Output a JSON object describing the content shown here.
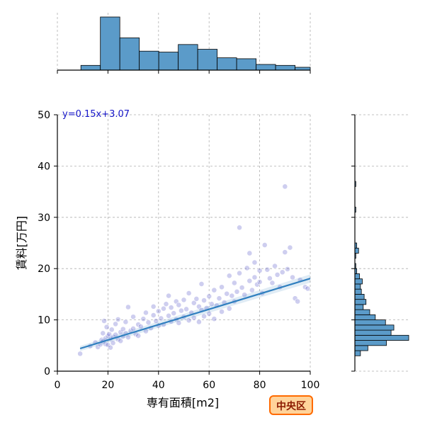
{
  "chart_data": {
    "type": "scatter",
    "title": "",
    "xlabel": "専有面積[m2]",
    "ylabel": "賃料[万円]",
    "xlim": [
      0,
      100
    ],
    "ylim": [
      0,
      50
    ],
    "xticks": [
      0,
      20,
      40,
      60,
      80,
      100
    ],
    "yticks": [
      0,
      10,
      20,
      30,
      40,
      50
    ],
    "grid": true,
    "colors": {
      "points": "#4f4fc4",
      "regression": "#2f7fbf",
      "hist_fill": "#5b9bc9",
      "hist_edge": "#000000",
      "badge_fill": "#ffd39a",
      "badge_border": "#ff6a00",
      "badge_text": "#8b1a00",
      "equation": "#1414c8"
    },
    "regression": {
      "equation": "y=0.15x+3.07",
      "slope": 0.15,
      "intercept": 3.07,
      "x_range": [
        9,
        100
      ]
    },
    "annotation": "中央区",
    "points": [
      [
        9,
        3.4
      ],
      [
        13,
        4.9
      ],
      [
        15,
        5.6
      ],
      [
        16,
        4.7
      ],
      [
        17,
        5.2
      ],
      [
        17.5,
        6.1
      ],
      [
        18,
        5.8
      ],
      [
        18,
        7.4
      ],
      [
        18.5,
        9.8
      ],
      [
        19,
        5.3
      ],
      [
        19,
        6.4
      ],
      [
        19.5,
        8.6
      ],
      [
        20,
        6.9
      ],
      [
        20,
        5.1
      ],
      [
        20.5,
        7.2
      ],
      [
        21,
        6.3
      ],
      [
        21,
        4.6
      ],
      [
        21.5,
        8.1
      ],
      [
        22,
        6.7
      ],
      [
        22,
        5.5
      ],
      [
        23,
        7.1
      ],
      [
        23,
        9.2
      ],
      [
        24,
        6.2
      ],
      [
        24,
        10.1
      ],
      [
        25,
        7.6
      ],
      [
        25,
        5.9
      ],
      [
        26,
        8.2
      ],
      [
        26,
        6.8
      ],
      [
        27,
        7.4
      ],
      [
        27,
        9.6
      ],
      [
        28,
        12.5
      ],
      [
        28,
        6.6
      ],
      [
        29,
        7.9
      ],
      [
        30,
        8.3
      ],
      [
        30,
        10.6
      ],
      [
        31,
        7.2
      ],
      [
        32,
        9.1
      ],
      [
        32,
        6.9
      ],
      [
        33,
        8.7
      ],
      [
        34,
        10.2
      ],
      [
        35,
        7.8
      ],
      [
        35,
        11.4
      ],
      [
        36,
        9.5
      ],
      [
        37,
        8.4
      ],
      [
        38,
        10.9
      ],
      [
        38,
        12.6
      ],
      [
        39,
        9.8
      ],
      [
        40,
        8.9
      ],
      [
        40,
        11.7
      ],
      [
        41,
        10.3
      ],
      [
        42,
        12.2
      ],
      [
        42,
        9.1
      ],
      [
        43,
        13.1
      ],
      [
        44,
        10.8
      ],
      [
        44,
        14.7
      ],
      [
        45,
        9.7
      ],
      [
        45,
        12.4
      ],
      [
        46,
        11.3
      ],
      [
        47,
        10.1
      ],
      [
        47,
        13.6
      ],
      [
        48,
        9.4
      ],
      [
        48,
        12.9
      ],
      [
        49,
        11.8
      ],
      [
        50,
        10.6
      ],
      [
        50,
        13.9
      ],
      [
        51,
        12.1
      ],
      [
        52,
        9.9
      ],
      [
        52,
        15.2
      ],
      [
        53,
        11.4
      ],
      [
        54,
        13.3
      ],
      [
        54,
        10.4
      ],
      [
        55,
        14.1
      ],
      [
        56,
        12.6
      ],
      [
        56,
        9.6
      ],
      [
        57,
        11.9
      ],
      [
        57,
        17.0
      ],
      [
        58,
        13.8
      ],
      [
        58,
        10.7
      ],
      [
        59,
        12.3
      ],
      [
        60,
        14.6
      ],
      [
        60,
        11.2
      ],
      [
        61,
        13.1
      ],
      [
        62,
        10.2
      ],
      [
        62,
        15.8
      ],
      [
        63,
        12.8
      ],
      [
        64,
        14.2
      ],
      [
        65,
        11.6
      ],
      [
        65,
        16.4
      ],
      [
        66,
        13.4
      ],
      [
        67,
        15.1
      ],
      [
        68,
        12.2
      ],
      [
        68,
        18.6
      ],
      [
        69,
        14.7
      ],
      [
        70,
        13.6
      ],
      [
        70,
        17.2
      ],
      [
        71,
        15.5
      ],
      [
        72,
        28.0
      ],
      [
        72,
        19.1
      ],
      [
        73,
        16.3
      ],
      [
        74,
        14.9
      ],
      [
        75,
        20.1
      ],
      [
        76,
        17.6
      ],
      [
        76,
        23.0
      ],
      [
        77,
        15.8
      ],
      [
        78,
        18.3
      ],
      [
        78,
        21.2
      ],
      [
        79,
        16.9
      ],
      [
        80,
        19.6
      ],
      [
        80,
        17.4
      ],
      [
        81,
        15.2
      ],
      [
        82,
        24.6
      ],
      [
        83,
        19.8
      ],
      [
        84,
        18.1
      ],
      [
        85,
        17.2
      ],
      [
        86,
        20.5
      ],
      [
        87,
        18.8
      ],
      [
        88,
        16.4
      ],
      [
        89,
        19.3
      ],
      [
        90,
        23.2
      ],
      [
        90,
        36.0
      ],
      [
        91,
        19.9
      ],
      [
        92,
        24.1
      ],
      [
        93,
        18.3
      ],
      [
        94,
        14.2
      ],
      [
        95,
        13.6
      ],
      [
        96,
        17.8
      ],
      [
        98,
        16.4
      ],
      [
        99,
        16.1
      ]
    ],
    "top_histogram": {
      "bin_edges": [
        9.3,
        17,
        24.7,
        32.4,
        40.1,
        47.8,
        55.5,
        63.2,
        70.9,
        78.6,
        86.3,
        94,
        101.7
      ],
      "counts": [
        5,
        56,
        34,
        20,
        19,
        27,
        22,
        13,
        12,
        6,
        5,
        3
      ]
    },
    "right_histogram": {
      "bin_edges": [
        3,
        4,
        5,
        6,
        7,
        8,
        9,
        10,
        11,
        12,
        13,
        14,
        15,
        16,
        17,
        18,
        19,
        20,
        21,
        22,
        23,
        24,
        25,
        26,
        27,
        28,
        29,
        30,
        31,
        32,
        33,
        34,
        35,
        36,
        37
      ],
      "counts": [
        6,
        14,
        34,
        58,
        39,
        42,
        33,
        22,
        16,
        9,
        12,
        10,
        7,
        6,
        8,
        5,
        2,
        1,
        0,
        1,
        4,
        2,
        0,
        0,
        0,
        0,
        0,
        0,
        1,
        0,
        0,
        0,
        0,
        1
      ]
    }
  }
}
